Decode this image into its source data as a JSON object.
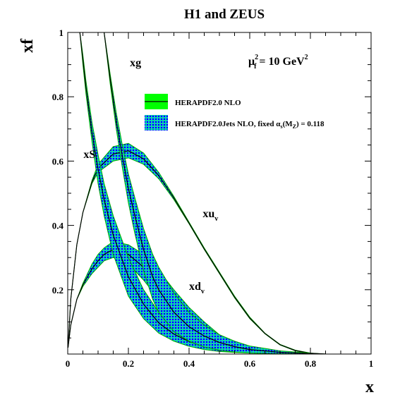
{
  "chart_data": {
    "type": "area",
    "title": "H1 and ZEUS",
    "xlabel": "x",
    "ylabel": "xf",
    "scale_label": {
      "main": "μ",
      "sub": "f",
      "sup": "2",
      "rest": " = 10 GeV",
      "rest_sup": "2"
    },
    "xlim": [
      0,
      1
    ],
    "ylim": [
      0,
      1
    ],
    "x_ticks": [
      {
        "v": 0,
        "label": "0"
      },
      {
        "v": 0.2,
        "label": "0.2"
      },
      {
        "v": 0.4,
        "label": "0.4"
      },
      {
        "v": 0.6,
        "label": "0.6"
      },
      {
        "v": 0.8,
        "label": "0.8"
      },
      {
        "v": 1,
        "label": "1"
      }
    ],
    "y_ticks": [
      {
        "v": 0.2,
        "label": "0.2"
      },
      {
        "v": 0.4,
        "label": "0.4"
      },
      {
        "v": 0.6,
        "label": "0.6"
      },
      {
        "v": 0.8,
        "label": "0.8"
      },
      {
        "v": 1,
        "label": "1"
      }
    ],
    "grid": false,
    "legend_position": "top-right",
    "legend": [
      {
        "label": "HERAPDF2.0 NLO",
        "style": "solid-green",
        "color": "#00ff00"
      },
      {
        "label": "HERAPDF2.0Jets NLO, fixed  α",
        "sub": "s",
        "paren": "(M",
        "paren_sub": "Z",
        "rest": ") = 0.118",
        "style": "hatched-blue",
        "color": "#0000ff"
      }
    ],
    "series": [
      {
        "name": "xu",
        "subscript": "v",
        "x": [
          0.001,
          0.01,
          0.03,
          0.05,
          0.08,
          0.1,
          0.15,
          0.2,
          0.25,
          0.3,
          0.35,
          0.4,
          0.45,
          0.5,
          0.55,
          0.6,
          0.65,
          0.7,
          0.75,
          0.8,
          0.85
        ],
        "upper": [
          0.02,
          0.17,
          0.34,
          0.44,
          0.54,
          0.59,
          0.645,
          0.655,
          0.625,
          0.565,
          0.49,
          0.41,
          0.33,
          0.255,
          0.18,
          0.115,
          0.065,
          0.03,
          0.012,
          0.003,
          0.0
        ],
        "lower": [
          0.02,
          0.17,
          0.34,
          0.44,
          0.53,
          0.565,
          0.6,
          0.61,
          0.59,
          0.545,
          0.48,
          0.405,
          0.325,
          0.25,
          0.175,
          0.11,
          0.063,
          0.028,
          0.01,
          0.002,
          0.0
        ],
        "central": [
          0.02,
          0.17,
          0.34,
          0.44,
          0.535,
          0.577,
          0.622,
          0.632,
          0.607,
          0.555,
          0.485,
          0.407,
          0.327,
          0.252,
          0.177,
          0.112,
          0.064,
          0.029,
          0.011,
          0.0025,
          0.0
        ]
      },
      {
        "name": "xd",
        "subscript": "v",
        "x": [
          0.001,
          0.01,
          0.03,
          0.05,
          0.08,
          0.1,
          0.12,
          0.15,
          0.2,
          0.25,
          0.3,
          0.35,
          0.4,
          0.45,
          0.5,
          0.55,
          0.6,
          0.65,
          0.7,
          0.75,
          0.8,
          0.85
        ],
        "upper": [
          0.02,
          0.09,
          0.17,
          0.22,
          0.28,
          0.31,
          0.33,
          0.35,
          0.34,
          0.31,
          0.26,
          0.2,
          0.145,
          0.1,
          0.06,
          0.035,
          0.018,
          0.008,
          0.003,
          0.001,
          0.0,
          0.0
        ],
        "lower": [
          0.02,
          0.09,
          0.17,
          0.21,
          0.25,
          0.27,
          0.29,
          0.3,
          0.28,
          0.23,
          0.17,
          0.12,
          0.08,
          0.05,
          0.03,
          0.016,
          0.008,
          0.003,
          0.001,
          0.0,
          0.0,
          0.0
        ],
        "central": [
          0.02,
          0.09,
          0.17,
          0.215,
          0.265,
          0.29,
          0.31,
          0.325,
          0.31,
          0.27,
          0.215,
          0.16,
          0.11,
          0.075,
          0.045,
          0.025,
          0.013,
          0.005,
          0.002,
          0.0005,
          0.0,
          0.0
        ]
      },
      {
        "name": "xS",
        "x": [
          0.04,
          0.05,
          0.06,
          0.08,
          0.1,
          0.12,
          0.15,
          0.2,
          0.25,
          0.3,
          0.35,
          0.4,
          0.45,
          0.5,
          0.55,
          0.6,
          0.7,
          0.8
        ],
        "upper": [
          1.0,
          0.93,
          0.85,
          0.72,
          0.62,
          0.53,
          0.43,
          0.3,
          0.2,
          0.13,
          0.085,
          0.055,
          0.035,
          0.022,
          0.013,
          0.008,
          0.003,
          0.001
        ],
        "lower": [
          1.0,
          0.9,
          0.81,
          0.66,
          0.53,
          0.43,
          0.31,
          0.18,
          0.11,
          0.065,
          0.04,
          0.024,
          0.014,
          0.008,
          0.005,
          0.003,
          0.001,
          0.0
        ],
        "central": [
          1.0,
          0.915,
          0.83,
          0.69,
          0.575,
          0.48,
          0.37,
          0.24,
          0.155,
          0.097,
          0.062,
          0.039,
          0.024,
          0.015,
          0.009,
          0.0055,
          0.002,
          0.0005
        ]
      },
      {
        "name": "xg",
        "x": [
          0.12,
          0.14,
          0.16,
          0.18,
          0.2,
          0.22,
          0.25,
          0.28,
          0.3,
          0.35,
          0.4,
          0.45,
          0.5,
          0.55,
          0.6,
          0.7,
          0.8
        ],
        "upper": [
          1.0,
          0.87,
          0.75,
          0.65,
          0.56,
          0.49,
          0.39,
          0.31,
          0.27,
          0.19,
          0.13,
          0.09,
          0.06,
          0.04,
          0.025,
          0.01,
          0.003
        ],
        "lower": [
          1.0,
          0.84,
          0.7,
          0.58,
          0.47,
          0.38,
          0.26,
          0.17,
          0.13,
          0.07,
          0.04,
          0.022,
          0.012,
          0.006,
          0.003,
          0.001,
          0.0
        ],
        "central": [
          1.0,
          0.855,
          0.725,
          0.615,
          0.515,
          0.435,
          0.325,
          0.24,
          0.2,
          0.13,
          0.085,
          0.056,
          0.036,
          0.023,
          0.014,
          0.0055,
          0.0015
        ]
      }
    ],
    "curve_labels": [
      {
        "name": "xg",
        "x": 0.205,
        "y": 0.895
      },
      {
        "name": "xS",
        "x": 0.052,
        "y": 0.61
      },
      {
        "name": "xu",
        "sub": "v",
        "x": 0.445,
        "y": 0.425
      },
      {
        "name": "xd",
        "sub": "v",
        "x": 0.4,
        "y": 0.2
      }
    ]
  }
}
